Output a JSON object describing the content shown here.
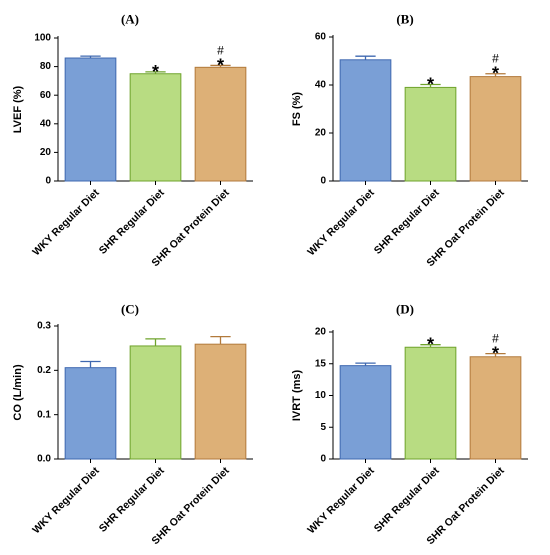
{
  "chart_data": [
    {
      "type": "bar",
      "panel": "(A)",
      "ylabel": "LVEF (%)",
      "ylim": [
        0,
        100
      ],
      "yticks": [
        0,
        20,
        40,
        60,
        80,
        100
      ],
      "categories": [
        "WKY Regular Diet",
        "SHR Regular Diet",
        "SHR Oat Protein Diet"
      ],
      "values": [
        86,
        75,
        79.5
      ],
      "errors": [
        1.3,
        1.3,
        1.3
      ],
      "colors": [
        "#7a9fd6",
        "#b8dc82",
        "#ddb077"
      ],
      "edge_colors": [
        "#3f68b0",
        "#6fa32c",
        "#b27a3c"
      ],
      "annotations": [
        [],
        [
          "*"
        ],
        [
          "#",
          "*"
        ]
      ]
    },
    {
      "type": "bar",
      "panel": "(B)",
      "ylabel": "FS (%)",
      "ylim": [
        0,
        60
      ],
      "yticks": [
        0,
        20,
        40,
        60
      ],
      "categories": [
        "WKY Regular Diet",
        "SHR Regular Diet",
        "SHR Oat Protein Diet"
      ],
      "values": [
        50.5,
        39,
        43.5
      ],
      "errors": [
        1.5,
        1.2,
        1.2
      ],
      "colors": [
        "#7a9fd6",
        "#b8dc82",
        "#ddb077"
      ],
      "edge_colors": [
        "#3f68b0",
        "#6fa32c",
        "#b27a3c"
      ],
      "annotations": [
        [],
        [
          "*"
        ],
        [
          "#",
          "*"
        ]
      ]
    },
    {
      "type": "bar",
      "panel": "(C)",
      "ylabel": "CO (L/min)",
      "ylim": [
        0,
        0.3
      ],
      "yticks": [
        0.0,
        0.1,
        0.2,
        0.3
      ],
      "ytick_labels": [
        "0.0",
        "0.1",
        "0.2",
        "0.3"
      ],
      "categories": [
        "WKY Regular Diet",
        "SHR Regular Diet",
        "SHR Oat Protein Diet"
      ],
      "values": [
        0.206,
        0.255,
        0.259
      ],
      "errors": [
        0.014,
        0.016,
        0.017
      ],
      "colors": [
        "#7a9fd6",
        "#b8dc82",
        "#ddb077"
      ],
      "edge_colors": [
        "#3f68b0",
        "#6fa32c",
        "#b27a3c"
      ],
      "annotations": [
        [],
        [],
        []
      ]
    },
    {
      "type": "bar",
      "panel": "(D)",
      "ylabel": "IVRT (ms)",
      "ylim": [
        0,
        20
      ],
      "yticks": [
        0,
        5,
        10,
        15,
        20
      ],
      "categories": [
        "WKY Regular Diet",
        "SHR Regular Diet",
        "SHR Oat Protein Diet"
      ],
      "values": [
        14.7,
        17.6,
        16.1
      ],
      "errors": [
        0.4,
        0.4,
        0.5
      ],
      "colors": [
        "#7a9fd6",
        "#b8dc82",
        "#ddb077"
      ],
      "edge_colors": [
        "#3f68b0",
        "#6fa32c",
        "#b27a3c"
      ],
      "annotations": [
        [],
        [
          "*"
        ],
        [
          "#",
          "*"
        ]
      ]
    }
  ]
}
